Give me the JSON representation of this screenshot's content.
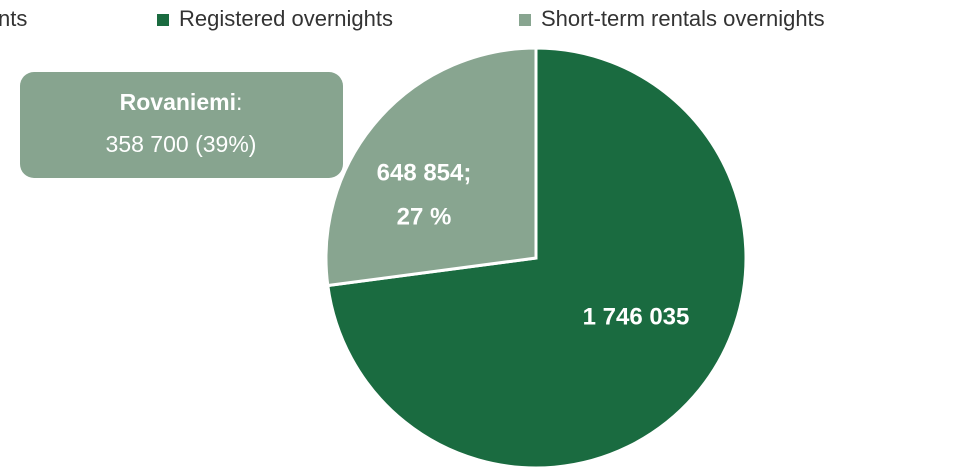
{
  "chart_data": {
    "type": "pie",
    "legend_fragment": "nts",
    "series": [
      {
        "name": "Registered overnights",
        "color": "#1a6b40",
        "values": [
          1746035
        ],
        "value_labels": [
          "1 746 035"
        ]
      },
      {
        "name": "Short-term rentals overnights",
        "color": "#88a590",
        "values": [
          648854
        ],
        "value_labels": [
          "648 854;"
        ],
        "percents": [
          27
        ],
        "percent_labels": [
          "27 %"
        ]
      }
    ],
    "callout": {
      "label": "Rovaniemi",
      "separator": ":",
      "text": "358 700 (39%)"
    },
    "legend": "top"
  }
}
